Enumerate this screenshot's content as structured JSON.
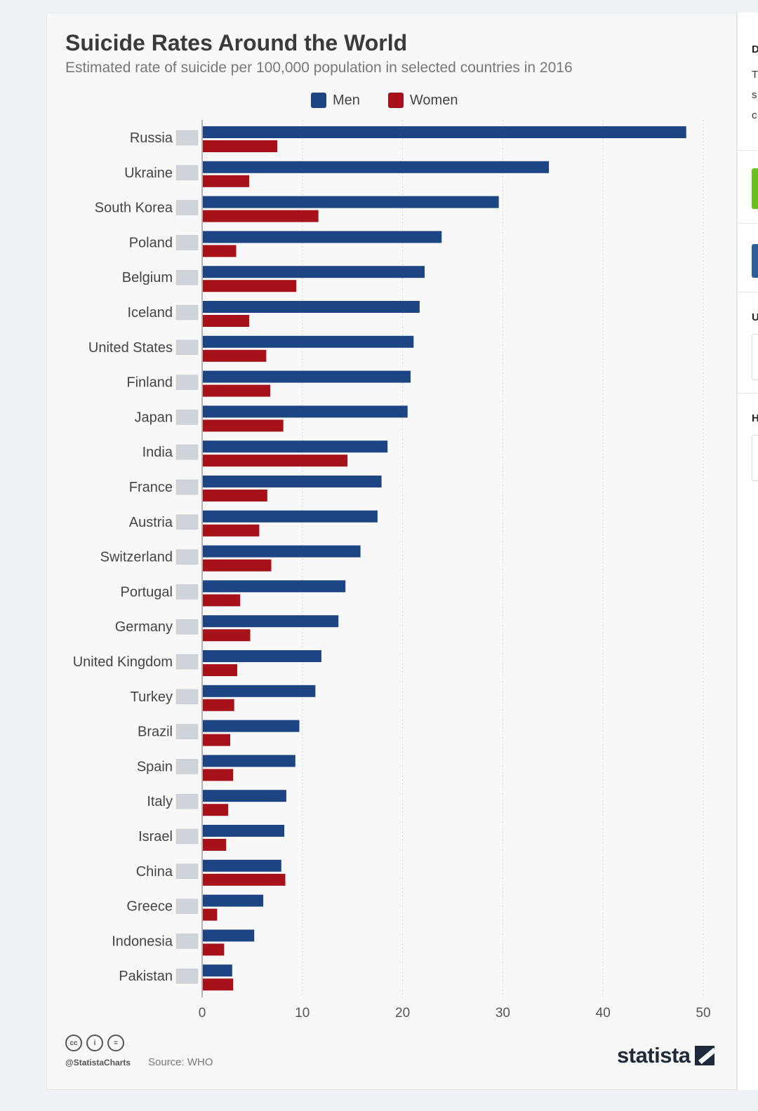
{
  "title": "Suicide Rates Around the World",
  "subtitle": "Estimated rate of suicide per 100,000 population in selected countries in 2016",
  "colors": {
    "men": "#1d4583",
    "women": "#a6111a",
    "grid": "#d4d4d4"
  },
  "legend": {
    "men": "Men",
    "women": "Women"
  },
  "chart_data": {
    "type": "bar",
    "orientation": "horizontal",
    "title": "Suicide Rates Around the World",
    "subtitle": "Estimated rate of suicide per 100,000 population in selected countries in 2016",
    "xlabel": "",
    "ylabel": "",
    "xlim": [
      0,
      50
    ],
    "ticks": [
      0,
      10,
      20,
      30,
      40,
      50
    ],
    "grid": "vertical dotted",
    "legend_position": "top",
    "categories": [
      "Russia",
      "Ukraine",
      "South Korea",
      "Poland",
      "Belgium",
      "Iceland",
      "United States",
      "Finland",
      "Japan",
      "India",
      "France",
      "Austria",
      "Switzerland",
      "Portugal",
      "Germany",
      "United Kingdom",
      "Turkey",
      "Brazil",
      "Spain",
      "Italy",
      "Israel",
      "China",
      "Greece",
      "Indonesia",
      "Pakistan"
    ],
    "series": [
      {
        "name": "Men",
        "values": [
          48.3,
          34.6,
          29.6,
          23.9,
          22.2,
          21.7,
          21.1,
          20.8,
          20.5,
          18.5,
          17.9,
          17.5,
          15.8,
          14.3,
          13.6,
          11.9,
          11.3,
          9.7,
          9.3,
          8.4,
          8.2,
          7.9,
          6.1,
          5.2,
          3.0
        ]
      },
      {
        "name": "Women",
        "values": [
          7.5,
          4.7,
          11.6,
          3.4,
          9.4,
          4.7,
          6.4,
          6.8,
          8.1,
          14.5,
          6.5,
          5.7,
          6.9,
          3.8,
          4.8,
          3.5,
          3.2,
          2.8,
          3.1,
          2.6,
          2.4,
          8.3,
          1.5,
          2.2,
          3.1
        ]
      }
    ]
  },
  "footer": {
    "handle": "@StatistaCharts",
    "source": "Source: WHO",
    "brand": "statista",
    "cc_icons": [
      "cc-icon",
      "by-icon",
      "nd-icon"
    ]
  },
  "side_panel": {
    "visible_letters": [
      "D",
      "T",
      "s",
      "c",
      "U",
      "H"
    ]
  }
}
